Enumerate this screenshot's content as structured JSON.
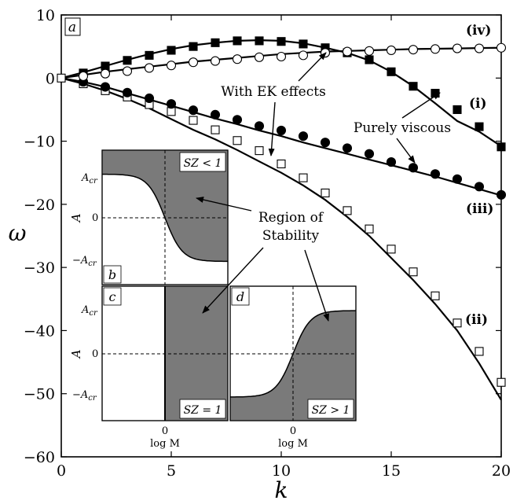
{
  "chart_data": [
    {
      "panel": "a",
      "type": "line",
      "xlabel": "k",
      "ylabel": "ω",
      "xlim": [
        0,
        20
      ],
      "ylim": [
        -60,
        10
      ],
      "xticks": [
        0,
        5,
        10,
        15,
        20
      ],
      "yticks": [
        10,
        0,
        -10,
        -20,
        -30,
        -40,
        -50,
        -60
      ],
      "series": [
        {
          "name": "(i)",
          "line_x": [
            0,
            1,
            2,
            3,
            4,
            5,
            6,
            7,
            8,
            9,
            10,
            11,
            12,
            13,
            14,
            15,
            16,
            17,
            18,
            19,
            20
          ],
          "line_y": [
            0,
            0.9,
            1.9,
            2.9,
            3.8,
            4.6,
            5.2,
            5.6,
            5.9,
            6.0,
            5.9,
            5.5,
            4.8,
            4.0,
            2.8,
            1.0,
            -1.3,
            -4.0,
            -6.8,
            -8.5,
            -10.8
          ],
          "markers": {
            "style": "filled-square",
            "x": [
              1,
              2,
              3,
              4,
              5,
              6,
              7,
              8,
              9,
              10,
              11,
              12,
              13,
              14,
              15,
              16,
              17,
              18,
              19,
              20
            ],
            "y": [
              0.8,
              1.9,
              2.8,
              3.6,
              4.4,
              5.0,
              5.6,
              5.9,
              5.9,
              5.8,
              5.4,
              4.8,
              4.0,
              2.9,
              1.0,
              -1.3,
              -2.4,
              -5.0,
              -7.7,
              -10.9
            ]
          }
        },
        {
          "name": "(ii)",
          "line_x": [
            0,
            1,
            2,
            3,
            4,
            5,
            6,
            7,
            8,
            9,
            10,
            11,
            12,
            13,
            14,
            15,
            16,
            17,
            18,
            19,
            20
          ],
          "line_y": [
            0,
            -0.9,
            -2.0,
            -3.3,
            -4.8,
            -6.5,
            -8.2,
            -9.7,
            -11.4,
            -13.2,
            -15.0,
            -17.0,
            -19.3,
            -22.0,
            -25.0,
            -28.5,
            -32.0,
            -35.8,
            -40.0,
            -45.2,
            -51.0
          ],
          "markers": {
            "style": "open-square",
            "x": [
              1,
              2,
              3,
              4,
              5,
              6,
              7,
              8,
              9,
              10,
              11,
              12,
              13,
              14,
              15,
              16,
              17,
              18,
              19,
              20
            ],
            "y": [
              -0.9,
              -2.0,
              -3.0,
              -4.2,
              -5.3,
              -6.7,
              -8.2,
              -9.9,
              -11.5,
              -13.6,
              -15.8,
              -18.2,
              -21.0,
              -23.9,
              -27.1,
              -30.7,
              -34.5,
              -38.8,
              -43.3,
              -48.2
            ]
          }
        },
        {
          "name": "(iii)",
          "line_x": [
            0,
            1,
            2,
            3,
            4,
            5,
            6,
            7,
            8,
            9,
            10,
            11,
            12,
            13,
            14,
            15,
            16,
            17,
            18,
            19,
            20
          ],
          "line_y": [
            0,
            -0.6,
            -1.4,
            -2.4,
            -3.4,
            -4.4,
            -5.4,
            -6.4,
            -7.3,
            -8.3,
            -9.2,
            -10.2,
            -11.1,
            -12.0,
            -12.9,
            -13.8,
            -14.7,
            -15.6,
            -16.6,
            -17.6,
            -18.6
          ],
          "markers": {
            "style": "filled-circle",
            "x": [
              1,
              2,
              3,
              4,
              5,
              6,
              7,
              8,
              9,
              10,
              11,
              12,
              13,
              14,
              15,
              16,
              17,
              18,
              19,
              20
            ],
            "y": [
              -0.6,
              -1.4,
              -2.3,
              -3.2,
              -4.1,
              -5.1,
              -5.8,
              -6.6,
              -7.6,
              -8.3,
              -9.2,
              -10.2,
              -11.1,
              -12.0,
              -13.3,
              -14.2,
              -15.2,
              -16.0,
              -17.2,
              -18.5
            ]
          }
        },
        {
          "name": "(iv)",
          "line_x": [
            0,
            1,
            2,
            3,
            4,
            5,
            6,
            7,
            8,
            9,
            10,
            11,
            12,
            13,
            14,
            15,
            16,
            17,
            18,
            19,
            20
          ],
          "line_y": [
            0,
            0.5,
            1.0,
            1.4,
            1.8,
            2.2,
            2.6,
            2.9,
            3.2,
            3.5,
            3.8,
            4.0,
            4.2,
            4.3,
            4.4,
            4.5,
            4.6,
            4.65,
            4.7,
            4.75,
            4.8
          ],
          "markers": {
            "style": "open-circle",
            "x": [
              1,
              2,
              3,
              4,
              5,
              6,
              7,
              8,
              9,
              10,
              11,
              12,
              13,
              14,
              15,
              16,
              17,
              18,
              19,
              20
            ],
            "y": [
              0.3,
              0.7,
              1.1,
              1.6,
              2.0,
              2.5,
              2.7,
              3.0,
              3.3,
              3.4,
              3.6,
              4.0,
              4.2,
              4.3,
              4.4,
              4.5,
              4.6,
              4.7,
              4.7,
              4.8
            ]
          }
        }
      ],
      "annotations": [
        "With EK effects",
        "Purely viscous",
        "Region of Stability"
      ]
    },
    {
      "panel": "b",
      "type": "area",
      "ylabel": "A",
      "condition": "SZ < 1",
      "yticks": [
        "A_cr",
        "0",
        "−A_cr"
      ],
      "boundary": "decreasing sigmoid from A_cr to −A_cr centered at log M = 0",
      "shaded": "above boundary"
    },
    {
      "panel": "c",
      "type": "area",
      "xlabel": "log M",
      "ylabel": "A",
      "condition": "SZ = 1",
      "xticks": [
        "0"
      ],
      "yticks": [
        "A_cr",
        "0",
        "−A_cr"
      ],
      "boundary": "vertical line at log M = 0",
      "shaded": "log M > 0"
    },
    {
      "panel": "d",
      "type": "area",
      "xlabel": "log M",
      "condition": "SZ > 1",
      "xticks": [
        "0"
      ],
      "boundary": "increasing sigmoid from −A_cr to A_cr centered at log M = 0",
      "shaded": "below boundary"
    }
  ],
  "text": {
    "panel_a": "a",
    "panel_b": "b",
    "panel_c": "c",
    "panel_d": "d",
    "label_i": "(i)",
    "label_ii": "(ii)",
    "label_iii": "(iii)",
    "label_iv": "(iv)",
    "with_ek": "With EK effects",
    "purely_viscous": "Purely viscous",
    "region_line1": "Region of",
    "region_line2": "Stability",
    "xlabel_main": "k",
    "ylabel_main": "ω",
    "sz_b": "SZ < 1",
    "sz_c": "SZ = 1",
    "sz_d": "SZ > 1",
    "acr": "A",
    "acr_sub": "cr",
    "neg_acr": "−A",
    "inset_A": "A",
    "inset_zero": "0",
    "logM": "log M"
  },
  "colors": {
    "shade": "#7a7a7a",
    "ink": "#000000"
  }
}
